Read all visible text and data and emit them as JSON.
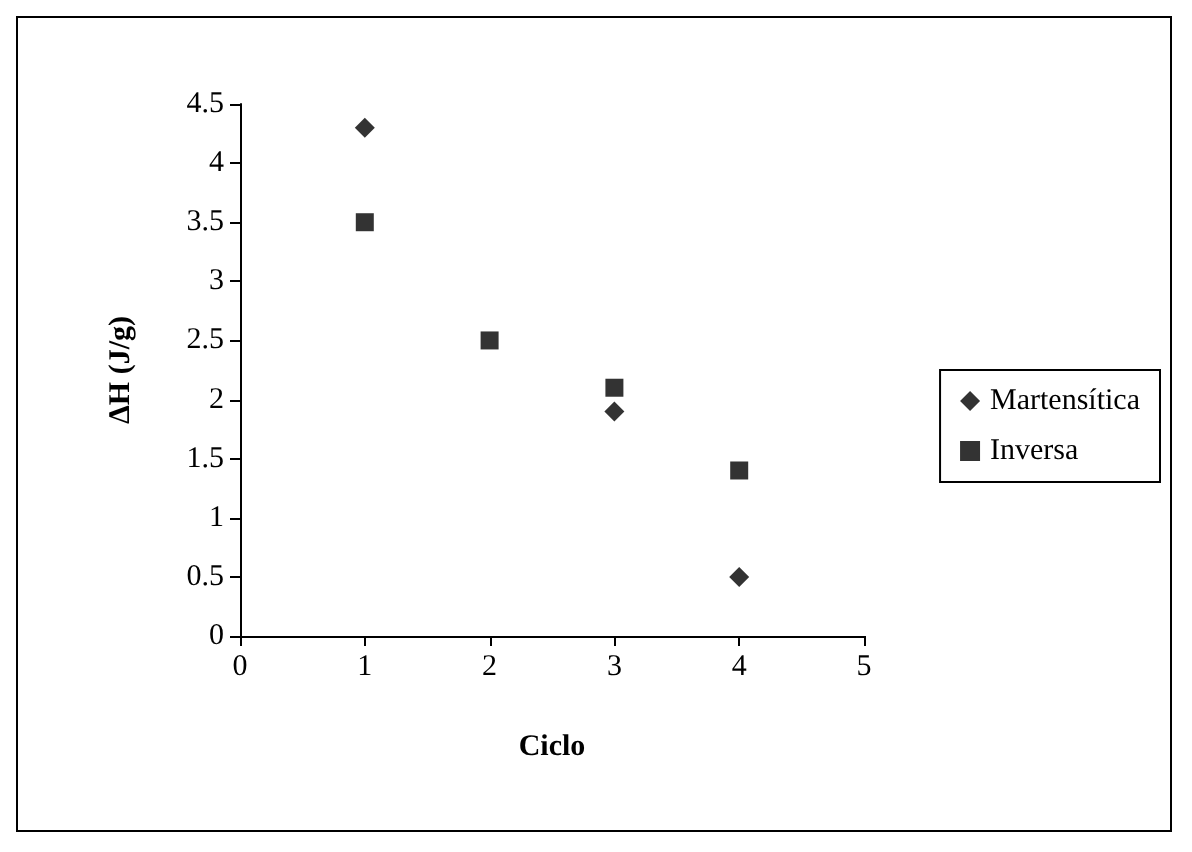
{
  "chart_data": {
    "type": "scatter",
    "xlabel": "Ciclo",
    "ylabel": "ΔH (J/g)",
    "xlim": [
      0,
      5
    ],
    "xticks": [
      0,
      1,
      2,
      3,
      4,
      5
    ],
    "ylim": [
      0,
      4.5
    ],
    "yticks": [
      0,
      0.5,
      1,
      1.5,
      2,
      2.5,
      3,
      3.5,
      4,
      4.5
    ],
    "grid": false,
    "legend": "right",
    "series": [
      {
        "name": "Martensítica",
        "color": "#000000",
        "marker": "diamond",
        "x": [
          1,
          3,
          4
        ],
        "values": [
          4.3,
          1.9,
          0.5
        ]
      },
      {
        "name": "Inversa",
        "color": "#000000",
        "marker": "square",
        "x": [
          1,
          2,
          3,
          4
        ],
        "values": [
          3.5,
          2.5,
          2.1,
          1.4
        ]
      }
    ]
  }
}
